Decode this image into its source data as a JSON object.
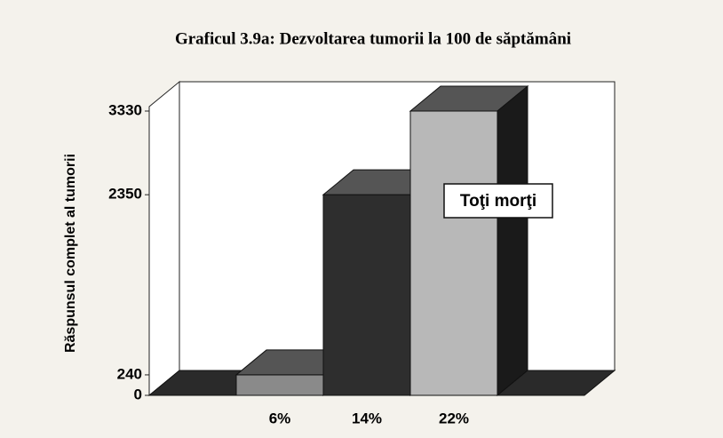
{
  "chart_data": {
    "type": "bar3d",
    "title": "Graficul 3.9a: Dezvoltarea tumorii la 100 de săptămâni",
    "y_label": "Răspunsul complet al tumorii",
    "categories": [
      null,
      "6%",
      "14%",
      "22%",
      null
    ],
    "values": [
      0,
      240,
      2350,
      3330,
      0
    ],
    "colors": [
      "#2a2a2a",
      "#8a8a8a",
      "#2e2e2e",
      "#b8b8b8",
      "#2a2a2a"
    ],
    "ylim": [
      0,
      3330
    ],
    "yticks": [
      0,
      240,
      2350,
      3330
    ],
    "annotation": "Toţi morţi"
  }
}
